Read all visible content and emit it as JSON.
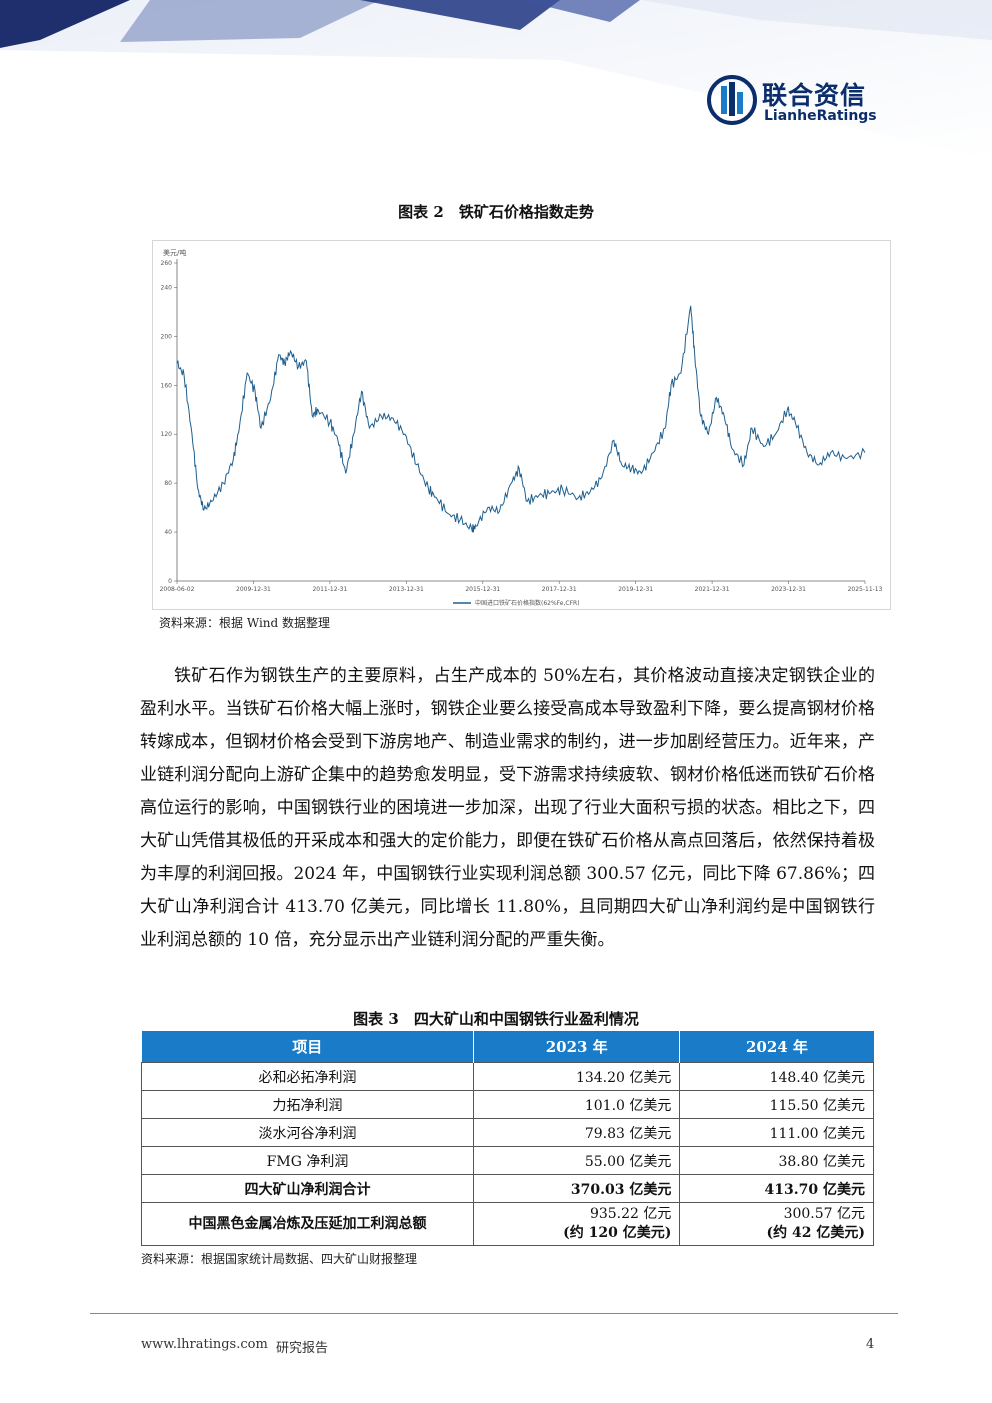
{
  "header": {
    "logo_cn": "联合资信",
    "logo_en": "LianheRatings",
    "colors": {
      "brand": "#0c2d6b",
      "accent": "#1a7bc8"
    }
  },
  "figure2": {
    "caption": "图表 2　铁矿石价格指数走势",
    "source": "资料来源：根据 Wind 数据整理"
  },
  "chart_data": {
    "type": "line",
    "title": "",
    "unit_label": "美元/吨",
    "ylim": [
      0,
      260
    ],
    "y_ticks": [
      "0",
      "40",
      "80",
      "120",
      "160",
      "200",
      "240",
      "260"
    ],
    "x_ticks": [
      "2008-06-02",
      "2009-12-31",
      "2011-12-31",
      "2013-12-31",
      "2015-12-31",
      "2017-12-31",
      "2019-12-31",
      "2021-12-31",
      "2023-12-31",
      "2025-11-13"
    ],
    "legend": "position: bottom-center",
    "grid": false,
    "series": [
      {
        "name": "中国进口铁矿石价格指数(62%Fe,CFR)",
        "color": "#1f5f8f",
        "x": [
          2008.42,
          2008.6,
          2008.8,
          2008.95,
          2009.1,
          2009.3,
          2009.6,
          2009.85,
          2010.0,
          2010.2,
          2010.4,
          2010.55,
          2010.8,
          2011.0,
          2011.15,
          2011.3,
          2011.5,
          2011.7,
          2011.85,
          2012.0,
          2012.3,
          2012.5,
          2012.7,
          2012.9,
          2013.1,
          2013.3,
          2013.6,
          2013.9,
          2014.2,
          2014.5,
          2014.8,
          2015.0,
          2015.3,
          2015.6,
          2015.9,
          2016.0,
          2016.3,
          2016.6,
          2016.9,
          2017.1,
          2017.3,
          2017.6,
          2017.9,
          2018.2,
          2018.6,
          2018.9,
          2019.2,
          2019.5,
          2019.7,
          2019.95,
          2020.2,
          2020.5,
          2020.8,
          2020.95,
          2021.2,
          2021.45,
          2021.55,
          2021.7,
          2021.9,
          2022.1,
          2022.3,
          2022.5,
          2022.8,
          2023.0,
          2023.3,
          2023.6,
          2023.9,
          2024.1,
          2024.4,
          2024.7,
          2025.0,
          2025.4,
          2025.87
        ],
        "values": [
          178,
          168,
          120,
          75,
          58,
          65,
          80,
          100,
          125,
          170,
          155,
          125,
          150,
          185,
          178,
          188,
          175,
          180,
          135,
          140,
          130,
          115,
          88,
          120,
          155,
          125,
          135,
          133,
          120,
          95,
          75,
          68,
          55,
          50,
          42,
          45,
          60,
          57,
          80,
          92,
          65,
          70,
          72,
          75,
          68,
          73,
          85,
          115,
          95,
          92,
          88,
          105,
          125,
          160,
          170,
          225,
          185,
          135,
          120,
          150,
          135,
          108,
          95,
          125,
          110,
          120,
          140,
          130,
          105,
          95,
          105,
          100,
          105
        ]
      }
    ]
  },
  "body_paragraph": "铁矿石作为钢铁生产的主要原料，占生产成本的 50%左右，其价格波动直接决定钢铁企业的盈利水平。当铁矿石价格大幅上涨时，钢铁企业要么接受高成本导致盈利下降，要么提高钢材价格转嫁成本，但钢材价格会受到下游房地产、制造业需求的制约，进一步加剧经营压力。近年来，产业链利润分配向上游矿企集中的趋势愈发明显，受下游需求持续疲软、钢材价格低迷而铁矿石价格高位运行的影响，中国钢铁行业的困境进一步加深，出现了行业大面积亏损的状态。相比之下，四大矿山凭借其极低的开采成本和强大的定价能力，即便在铁矿石价格从高点回落后，依然保持着极为丰厚的利润回报。2024 年，中国钢铁行业实现利润总额 300.57 亿元，同比下降 67.86%；四大矿山净利润合计 413.70 亿美元，同比增长 11.80%，且同期四大矿山净利润约是中国钢铁行业利润总额的 10 倍，充分显示出产业链利润分配的严重失衡。",
  "figure3": {
    "caption": "图表 3　四大矿山和中国钢铁行业盈利情况",
    "headers": [
      "项目",
      "2023 年",
      "2024 年"
    ],
    "rows": [
      {
        "item": "必和必拓净利润",
        "y2023": "134.20 亿美元",
        "y2024": "148.40 亿美元"
      },
      {
        "item": "力拓净利润",
        "y2023": "101.0 亿美元",
        "y2024": "115.50 亿美元"
      },
      {
        "item": "淡水河谷净利润",
        "y2023": "79.83 亿美元",
        "y2024": "111.00 亿美元"
      },
      {
        "item": "FMG 净利润",
        "y2023": "55.00 亿美元",
        "y2024": "38.80 亿美元"
      },
      {
        "item": "四大矿山净利润合计",
        "y2023": "370.03 亿美元",
        "y2024": "413.70 亿美元"
      },
      {
        "item": "中国黑色金属冶炼及压延加工利润总额",
        "y2023": "935.22 亿元",
        "y2023_note": "(约 120 亿美元)",
        "y2024": "300.57 亿元",
        "y2024_note": "(约 42 亿美元)"
      }
    ],
    "source": "资料来源：根据国家统计局数据、四大矿山财报整理"
  },
  "footer": {
    "url": "www.lhratings.com",
    "doc_type": "研究报告",
    "page_number": "4"
  }
}
